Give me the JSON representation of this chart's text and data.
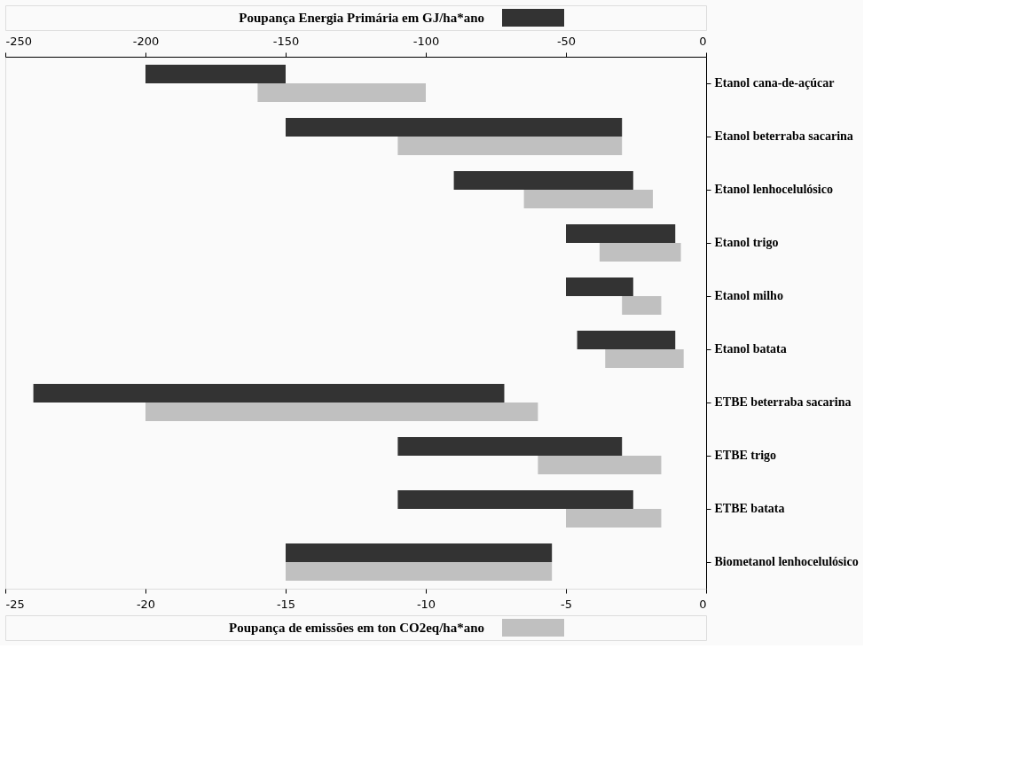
{
  "chart_data": {
    "type": "bar",
    "orientation": "horizontal",
    "legend": "top",
    "categories": [
      "Etanol cana-de-açúcar",
      "Etanol beterraba sacarina",
      "Etanol lenhocelulósico",
      "Etanol trigo",
      "Etanol milho",
      "Etanol batata",
      "ETBE beterraba sacarina",
      "ETBE trigo",
      "ETBE batata",
      "Biometanol lenhocelulósico"
    ],
    "series": [
      {
        "name": "Poupança Energia Primária em GJ/ha*ano",
        "color": "#333333",
        "axis": "x2",
        "base": [
          -200,
          -150,
          -90,
          -50,
          -50,
          -46,
          -240,
          -110,
          -110,
          -150
        ],
        "values": [
          50,
          120,
          64,
          39,
          24,
          35,
          168,
          80,
          84,
          95
        ]
      },
      {
        "name": "Poupança de emissões em ton CO2eq/ha*ano",
        "color": "#c0c0c0",
        "base": [
          -16,
          -11,
          -6.5,
          -3.8,
          -3.0,
          -3.6,
          -20,
          -6,
          -5,
          -15
        ],
        "values": [
          6,
          8,
          4.6,
          2.9,
          1.4,
          2.8,
          14,
          4.4,
          3.4,
          9.5
        ]
      }
    ],
    "xlim": [
      -25,
      0
    ],
    "xticks": [
      -25,
      -20,
      -15,
      -10,
      -5,
      0
    ],
    "x2lim": [
      -250,
      0
    ],
    "x2ticks": [
      -250,
      -200,
      -150,
      -100,
      -50,
      0
    ],
    "grid": false
  }
}
